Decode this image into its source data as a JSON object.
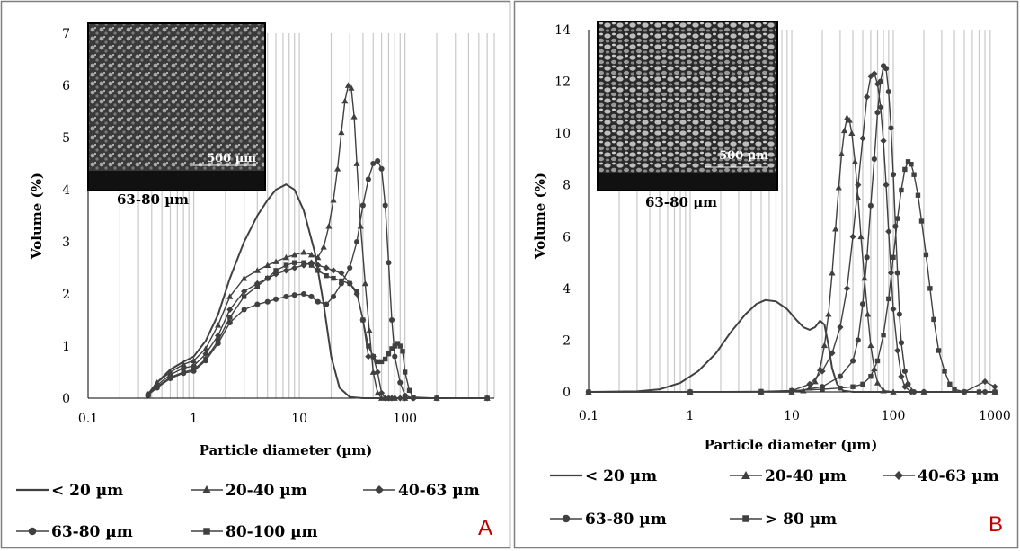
{
  "chart_data": [
    {
      "panel": "A",
      "type": "line",
      "xscale": "log",
      "xlim": [
        0.1,
        700
      ],
      "ylim": [
        0,
        7
      ],
      "xticks": [
        0.1,
        1,
        10,
        100
      ],
      "yticks": [
        0,
        1,
        2,
        3,
        4,
        5,
        6,
        7
      ],
      "xlabel": "Particle diameter (µm)",
      "ylabel": "Volume (%)",
      "inset": {
        "caption": "63-80 µm",
        "scale_bar": "500 µm"
      },
      "series": [
        {
          "name": "< 20 µm",
          "marker": "none",
          "x": [
            0.37,
            0.45,
            0.6,
            0.8,
            1.0,
            1.3,
            1.7,
            2.2,
            3,
            4,
            5,
            6,
            7.5,
            9,
            11,
            14,
            17,
            20,
            24,
            30,
            40,
            60,
            100,
            200,
            600
          ],
          "y": [
            0.08,
            0.3,
            0.55,
            0.7,
            0.8,
            1.1,
            1.6,
            2.3,
            3.0,
            3.5,
            3.8,
            4.0,
            4.1,
            4.0,
            3.6,
            2.8,
            1.8,
            0.8,
            0.2,
            0.02,
            0,
            0,
            0,
            0,
            0
          ]
        },
        {
          "name": "20-40 µm",
          "marker": "triangle",
          "x": [
            0.37,
            0.45,
            0.6,
            0.8,
            1.0,
            1.3,
            1.7,
            2.2,
            3,
            4,
            5,
            6,
            7.5,
            9,
            11,
            13,
            15,
            17,
            19,
            21,
            23,
            25,
            27,
            29,
            31,
            33,
            35,
            38,
            42,
            46,
            50,
            55,
            60,
            70,
            80,
            100,
            200,
            600
          ],
          "y": [
            0.08,
            0.3,
            0.5,
            0.65,
            0.72,
            0.95,
            1.4,
            1.95,
            2.3,
            2.45,
            2.55,
            2.62,
            2.7,
            2.75,
            2.8,
            2.75,
            2.7,
            2.9,
            3.3,
            3.8,
            4.4,
            5.1,
            5.7,
            6.0,
            5.95,
            5.4,
            4.5,
            3.3,
            2.2,
            1.3,
            0.5,
            0.1,
            0,
            0,
            0,
            0,
            0,
            0
          ]
        },
        {
          "name": "40-63 µm",
          "marker": "diamond",
          "x": [
            0.37,
            0.45,
            0.6,
            0.8,
            1.0,
            1.3,
            1.7,
            2.2,
            3,
            4,
            5,
            6,
            7.5,
            9,
            11,
            13,
            15,
            18,
            21,
            25,
            30,
            35,
            40,
            45,
            50,
            55,
            60,
            65,
            70,
            75,
            80,
            90,
            100,
            120,
            200,
            600
          ],
          "y": [
            0.07,
            0.25,
            0.45,
            0.58,
            0.62,
            0.85,
            1.2,
            1.7,
            2.05,
            2.2,
            2.3,
            2.38,
            2.45,
            2.5,
            2.55,
            2.6,
            2.55,
            2.5,
            2.45,
            2.4,
            2.2,
            2.0,
            1.5,
            0.8,
            0.8,
            0.5,
            0.1,
            0,
            0,
            0,
            0,
            0,
            0,
            0,
            0,
            0
          ]
        },
        {
          "name": "63-80 µm",
          "marker": "circle",
          "x": [
            0.37,
            0.45,
            0.6,
            0.8,
            1.0,
            1.3,
            1.7,
            2.2,
            3,
            4,
            5,
            6,
            7.5,
            9,
            11,
            13,
            15,
            18,
            21,
            25,
            30,
            35,
            40,
            45,
            50,
            55,
            60,
            65,
            70,
            75,
            80,
            90,
            100,
            120,
            200,
            600
          ],
          "y": [
            0.06,
            0.2,
            0.38,
            0.48,
            0.52,
            0.72,
            1.05,
            1.45,
            1.7,
            1.8,
            1.85,
            1.9,
            1.95,
            1.98,
            2.0,
            1.95,
            1.85,
            1.8,
            1.95,
            2.2,
            2.5,
            3.0,
            3.7,
            4.2,
            4.5,
            4.55,
            4.4,
            3.7,
            2.6,
            1.5,
            0.8,
            0.3,
            0.05,
            0,
            0,
            0
          ]
        },
        {
          "name": "80-100 µm",
          "marker": "square",
          "x": [
            0.37,
            0.45,
            0.6,
            0.8,
            1.0,
            1.3,
            1.7,
            2.2,
            3,
            4,
            5,
            6,
            7.5,
            9,
            11,
            13,
            15,
            18,
            21,
            25,
            30,
            35,
            40,
            45,
            50,
            55,
            60,
            65,
            70,
            75,
            80,
            85,
            90,
            95,
            100,
            110,
            120,
            200,
            600
          ],
          "y": [
            0.06,
            0.22,
            0.4,
            0.5,
            0.55,
            0.75,
            1.1,
            1.55,
            1.95,
            2.15,
            2.3,
            2.45,
            2.55,
            2.6,
            2.6,
            2.55,
            2.45,
            2.35,
            2.3,
            2.25,
            2.2,
            2.05,
            1.5,
            1.0,
            0.8,
            0.7,
            0.7,
            0.75,
            0.85,
            0.95,
            1.0,
            1.05,
            1.0,
            0.9,
            0.5,
            0.15,
            0.02,
            0,
            0
          ]
        }
      ],
      "legend": {
        "labels": [
          "< 20 µm",
          "20-40 µm",
          "40-63 µm",
          "63-80 µm",
          "80-100 µm"
        ],
        "panel_letter": "A"
      }
    },
    {
      "panel": "B",
      "type": "line",
      "xscale": "log",
      "xlim": [
        0.1,
        1000
      ],
      "ylim": [
        0,
        14
      ],
      "xticks": [
        0.1,
        1,
        10,
        100,
        1000
      ],
      "yticks": [
        0,
        2,
        4,
        6,
        8,
        10,
        12,
        14
      ],
      "xlabel": "Particle diameter (µm)",
      "ylabel": "Volume (%)",
      "inset": {
        "caption": "63-80 µm",
        "scale_bar": "500 µm"
      },
      "series": [
        {
          "name": "< 20 µm",
          "marker": "none",
          "x": [
            0.1,
            0.3,
            0.5,
            0.8,
            1.2,
            1.8,
            2.5,
            3.5,
            4.5,
            5.5,
            7,
            9,
            11,
            13,
            15,
            17,
            19,
            21,
            23,
            25,
            28,
            32,
            40,
            60,
            100,
            300,
            1000
          ],
          "y": [
            0,
            0.02,
            0.1,
            0.35,
            0.8,
            1.5,
            2.3,
            3.0,
            3.4,
            3.55,
            3.5,
            3.2,
            2.8,
            2.5,
            2.4,
            2.5,
            2.75,
            2.6,
            1.8,
            0.9,
            0.3,
            0.05,
            0,
            0,
            0,
            0,
            0
          ]
        },
        {
          "name": "20-40 µm",
          "marker": "triangle",
          "x": [
            0.1,
            1,
            5,
            10,
            13,
            15,
            17,
            19,
            21,
            23,
            25,
            27,
            29,
            31,
            33,
            35,
            37,
            39,
            42,
            45,
            48,
            52,
            56,
            60,
            65,
            70,
            80,
            100,
            200,
            1000
          ],
          "y": [
            0,
            0,
            0,
            0,
            0.05,
            0.15,
            0.4,
            0.9,
            1.8,
            3.0,
            4.6,
            6.3,
            7.9,
            9.2,
            10.1,
            10.6,
            10.5,
            10.0,
            8.9,
            7.5,
            6.0,
            4.4,
            3.0,
            1.8,
            0.9,
            0.35,
            0.05,
            0,
            0,
            0
          ]
        },
        {
          "name": "40-63 µm",
          "marker": "diamond",
          "x": [
            0.1,
            1,
            5,
            10,
            15,
            20,
            25,
            30,
            35,
            40,
            45,
            50,
            55,
            60,
            65,
            70,
            75,
            80,
            85,
            90,
            95,
            100,
            110,
            120,
            130,
            150,
            200,
            500,
            800,
            1000
          ],
          "y": [
            0,
            0,
            0,
            0.05,
            0.3,
            0.8,
            1.5,
            2.5,
            4.0,
            6.0,
            8.0,
            9.8,
            11.4,
            12.2,
            12.3,
            11.9,
            11.0,
            9.7,
            8.0,
            6.2,
            4.6,
            3.2,
            1.6,
            0.6,
            0.2,
            0,
            0,
            0,
            0.4,
            0.2
          ]
        },
        {
          "name": "63-80 µm",
          "marker": "circle",
          "x": [
            0.1,
            1,
            5,
            10,
            20,
            30,
            40,
            45,
            50,
            55,
            60,
            65,
            70,
            75,
            80,
            85,
            90,
            95,
            100,
            105,
            110,
            115,
            120,
            130,
            140,
            160,
            200,
            500,
            800,
            1000
          ],
          "y": [
            0,
            0,
            0,
            0,
            0.2,
            0.6,
            1.2,
            2.0,
            3.4,
            5.2,
            7.2,
            9.0,
            10.8,
            12.0,
            12.6,
            12.5,
            11.6,
            10.2,
            8.4,
            6.4,
            4.6,
            3.0,
            1.9,
            0.8,
            0.3,
            0,
            0,
            0,
            0,
            0
          ]
        },
        {
          "name": "> 80 µm",
          "marker": "square",
          "x": [
            0.1,
            1,
            5,
            10,
            20,
            30,
            40,
            50,
            60,
            70,
            80,
            90,
            100,
            110,
            120,
            130,
            140,
            150,
            160,
            175,
            190,
            210,
            230,
            250,
            280,
            320,
            360,
            400,
            500,
            700,
            1000
          ],
          "y": [
            0,
            0,
            0.02,
            0.05,
            0.1,
            0.15,
            0.2,
            0.3,
            0.6,
            1.2,
            2.2,
            3.6,
            5.2,
            6.7,
            7.8,
            8.6,
            8.9,
            8.8,
            8.4,
            7.6,
            6.6,
            5.3,
            4.0,
            2.8,
            1.6,
            0.8,
            0.3,
            0.1,
            0,
            0,
            0
          ]
        }
      ],
      "legend": {
        "labels": [
          "< 20 µm",
          "20-40 µm",
          "40-63 µm",
          "63-80 µm",
          "> 80 µm"
        ],
        "panel_letter": "B"
      }
    }
  ]
}
